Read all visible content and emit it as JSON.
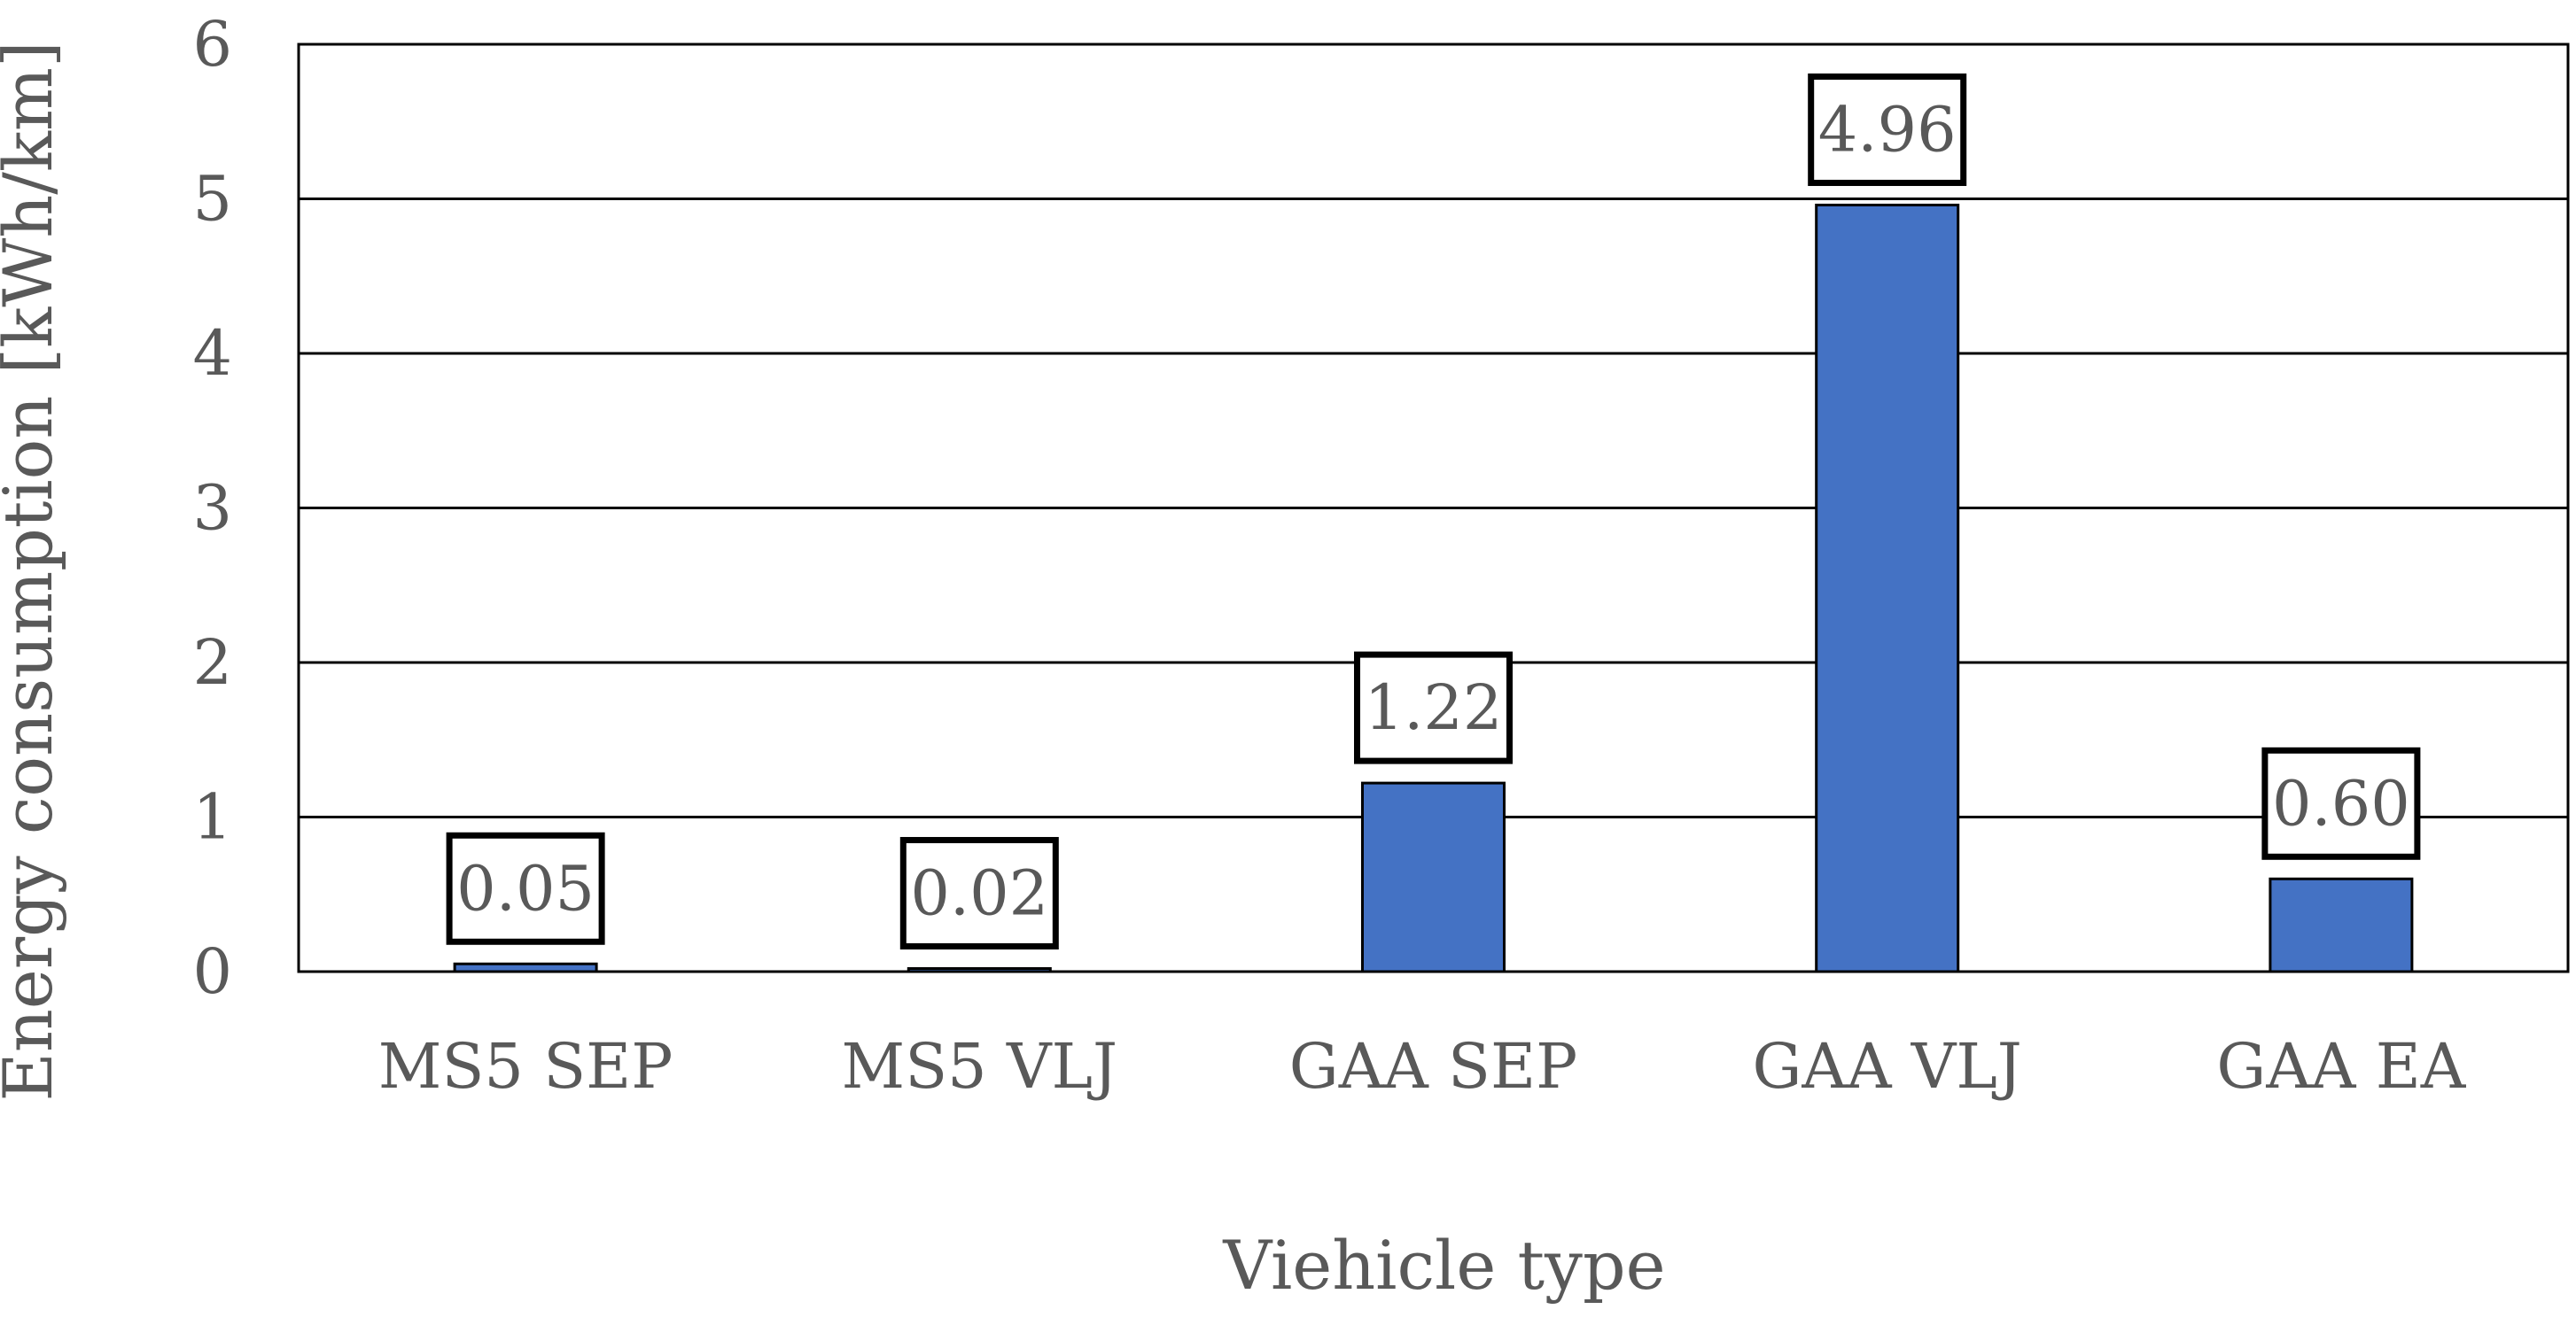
{
  "chart_data": {
    "type": "bar",
    "title": "",
    "xlabel": "Viehicle type",
    "ylabel": "Energy consumption [kWh/km]",
    "categories": [
      "MS5 SEP",
      "MS5 VLJ",
      "GAA SEP",
      "GAA VLJ",
      "GAA EA"
    ],
    "values": [
      0.05,
      0.02,
      1.22,
      4.96,
      0.6
    ],
    "data_labels": [
      "0.05",
      "0.02",
      "1.22",
      "4.96",
      "0.60"
    ],
    "ylim": [
      0,
      6
    ],
    "yticks": [
      0,
      1,
      2,
      3,
      4,
      5,
      6
    ],
    "grid": true,
    "legend": "none"
  },
  "colors": {
    "bar": "#4472C4",
    "bar_edge": "#000000",
    "grid": "#000000",
    "text": "#595959",
    "label_box_border": "#000000"
  }
}
